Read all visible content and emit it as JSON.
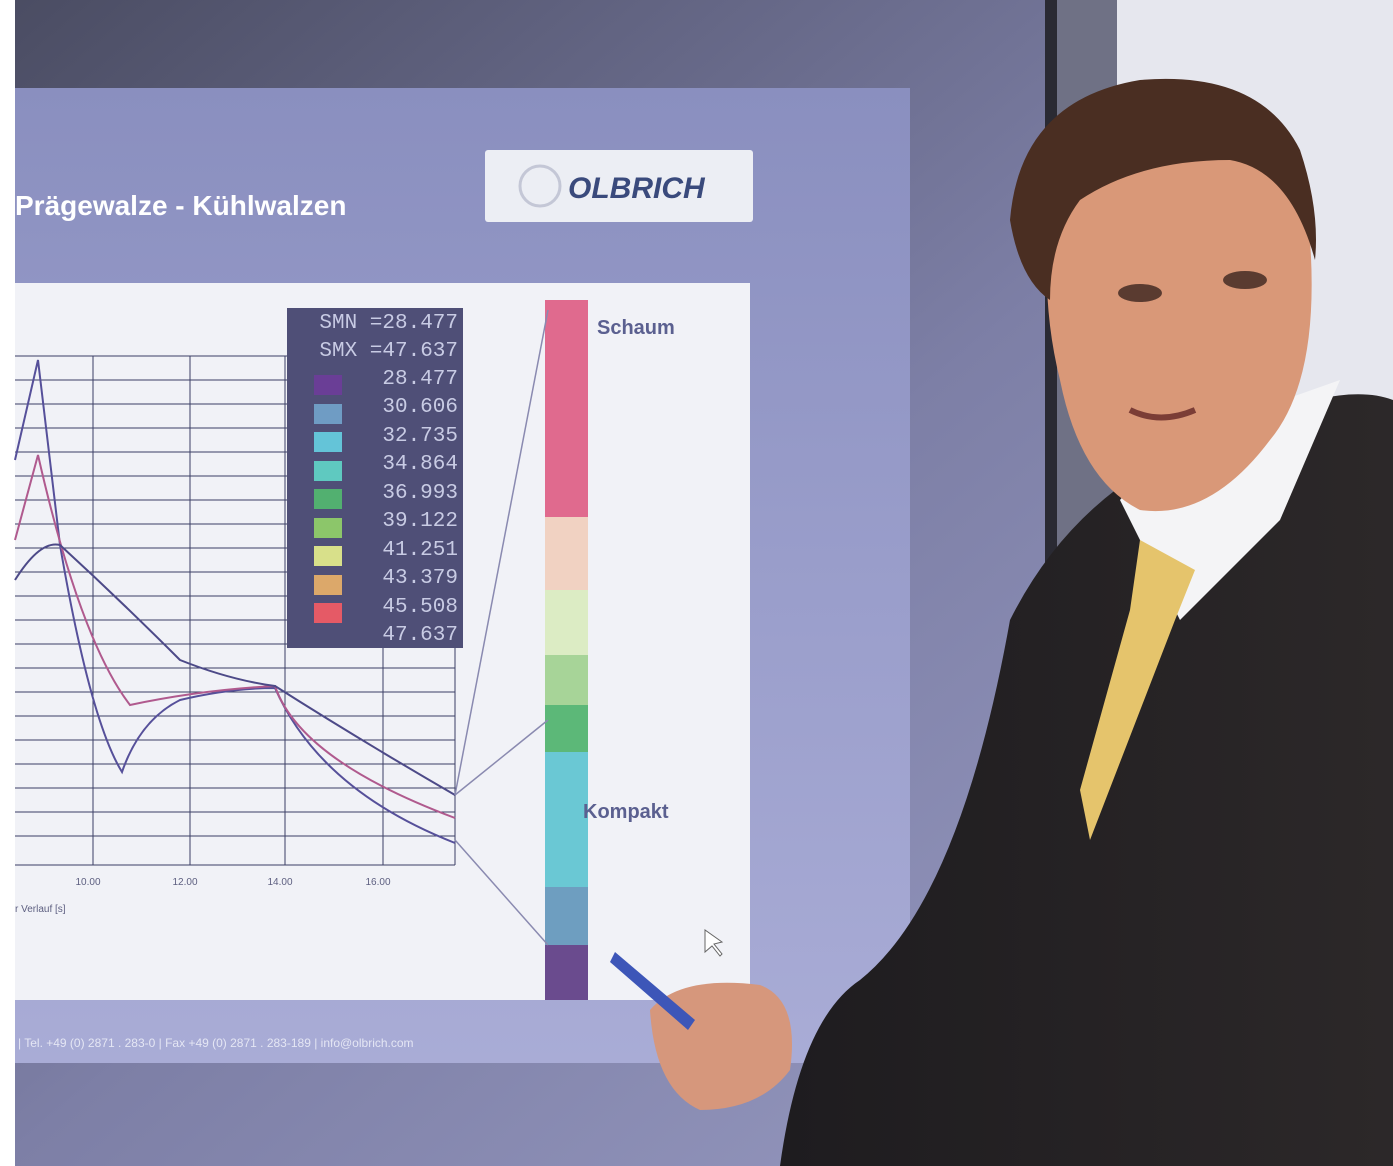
{
  "slide": {
    "title": "Prägewalze - Kühlwalzen",
    "logo": "OLBRICH",
    "legend": {
      "smn": "SMN =28.477",
      "smx": "SMX =47.637",
      "levels": [
        "28.477",
        "30.606",
        "32.735",
        "34.864",
        "36.993",
        "39.122",
        "41.251",
        "43.379",
        "45.508",
        "47.637"
      ]
    },
    "bar_labels": [
      "Schaum",
      "Kompakt"
    ],
    "x_ticks": [
      "10.00",
      "12.00",
      "14.00",
      "16.00"
    ],
    "x_axis_label": "r Verlauf [s]",
    "footer": "| Tel. +49 (0) 2871 . 283-0 | Fax +49 (0) 2871 . 283-189 | info@olbrich.com"
  }
}
